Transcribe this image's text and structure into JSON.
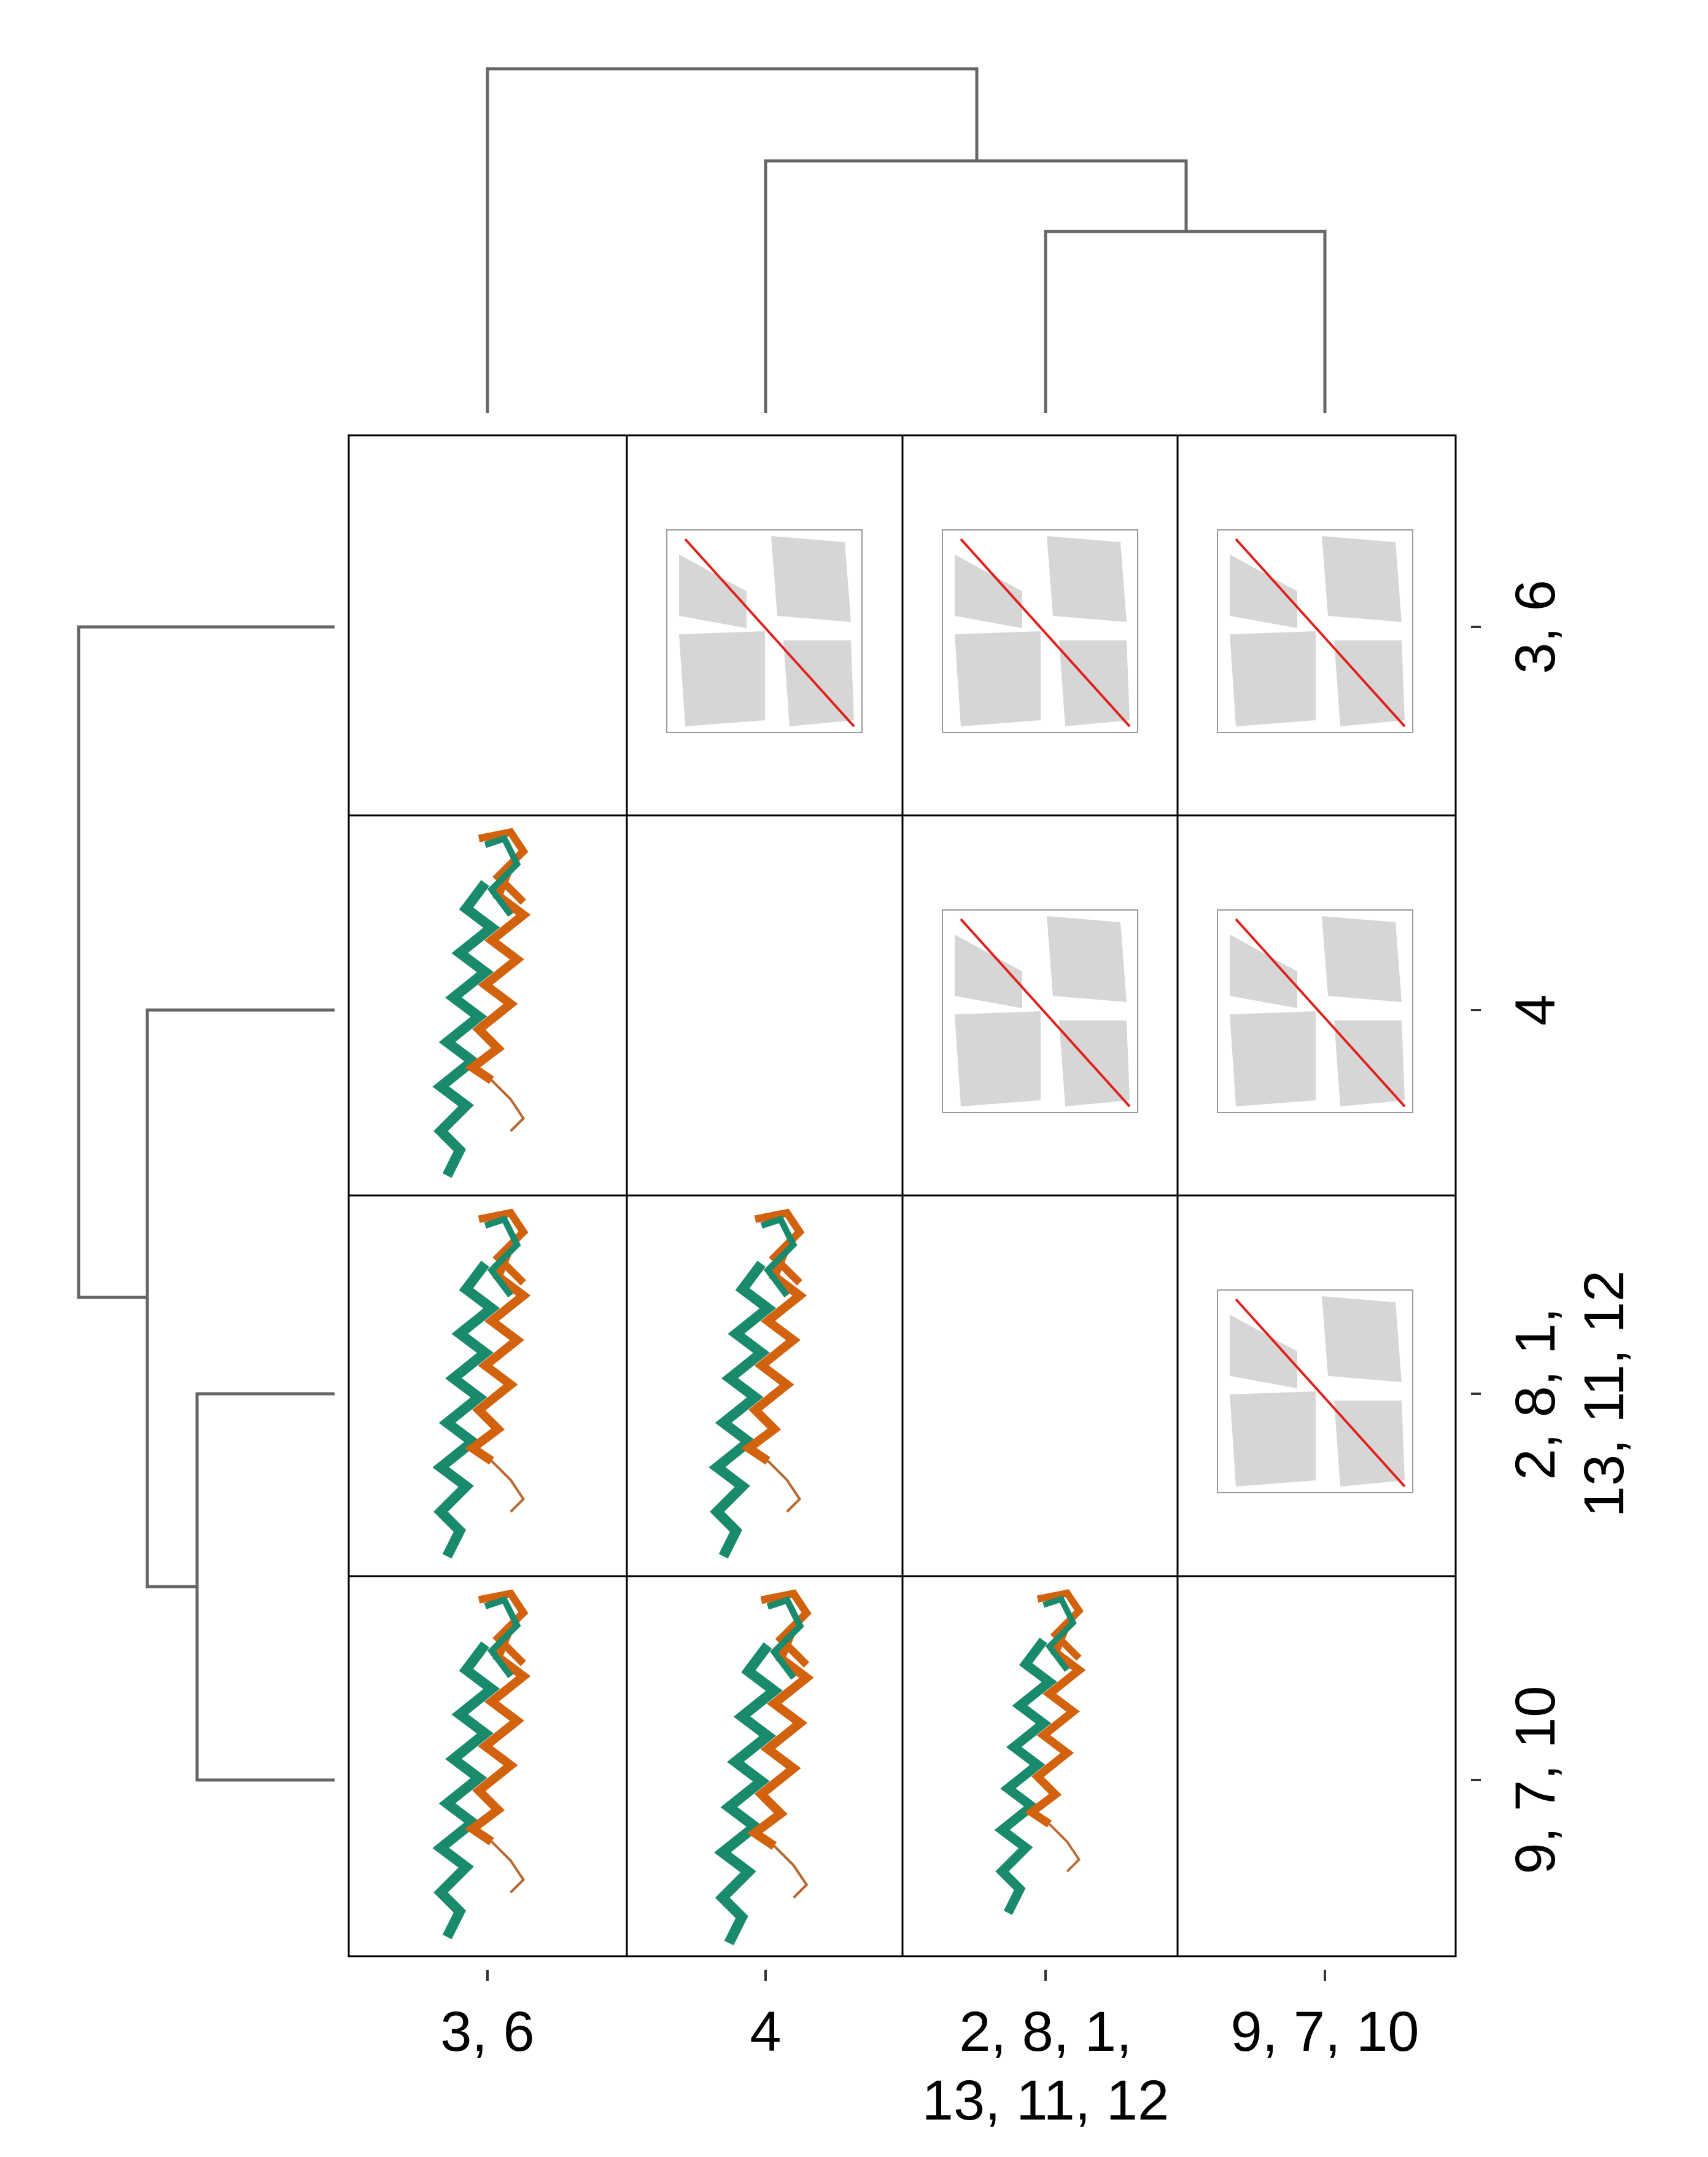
{
  "column_labels": [
    [
      "3, 6"
    ],
    [
      "4"
    ],
    [
      "2, 8, 1,",
      "13, 11, 12"
    ],
    [
      "9, 7, 10"
    ]
  ],
  "row_labels": [
    [
      "3, 6"
    ],
    [
      "4"
    ],
    [
      "2, 8, 1,",
      "13, 11, 12"
    ],
    [
      "9, 7, 10"
    ]
  ]
}
